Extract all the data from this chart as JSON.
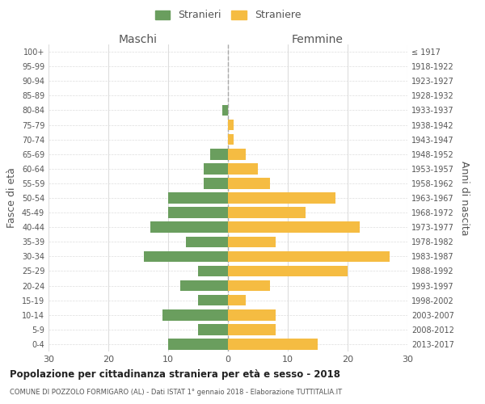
{
  "age_groups": [
    "0-4",
    "5-9",
    "10-14",
    "15-19",
    "20-24",
    "25-29",
    "30-34",
    "35-39",
    "40-44",
    "45-49",
    "50-54",
    "55-59",
    "60-64",
    "65-69",
    "70-74",
    "75-79",
    "80-84",
    "85-89",
    "90-94",
    "95-99",
    "100+"
  ],
  "birth_years": [
    "2013-2017",
    "2008-2012",
    "2003-2007",
    "1998-2002",
    "1993-1997",
    "1988-1992",
    "1983-1987",
    "1978-1982",
    "1973-1977",
    "1968-1972",
    "1963-1967",
    "1958-1962",
    "1953-1957",
    "1948-1952",
    "1943-1947",
    "1938-1942",
    "1933-1937",
    "1928-1932",
    "1923-1927",
    "1918-1922",
    "≤ 1917"
  ],
  "maschi": [
    10,
    5,
    11,
    5,
    8,
    5,
    14,
    7,
    13,
    10,
    10,
    4,
    4,
    3,
    0,
    0,
    1,
    0,
    0,
    0,
    0
  ],
  "femmine": [
    15,
    8,
    8,
    3,
    7,
    20,
    27,
    8,
    22,
    13,
    18,
    7,
    5,
    3,
    1,
    1,
    0,
    0,
    0,
    0,
    0
  ],
  "maschi_color": "#6a9e5e",
  "femmine_color": "#f5bc42",
  "bg_color": "#ffffff",
  "grid_color": "#dddddd",
  "title": "Popolazione per cittadinanza straniera per età e sesso - 2018",
  "subtitle": "COMUNE DI POZZOLO FORMIGARO (AL) - Dati ISTAT 1° gennaio 2018 - Elaborazione TUTTITALIA.IT",
  "ylabel_left": "Fasce di età",
  "ylabel_right": "Anni di nascita",
  "xlabel_left": "Maschi",
  "xlabel_right": "Femmine",
  "legend_maschi": "Stranieri",
  "legend_femmine": "Straniere",
  "xlim": 30
}
